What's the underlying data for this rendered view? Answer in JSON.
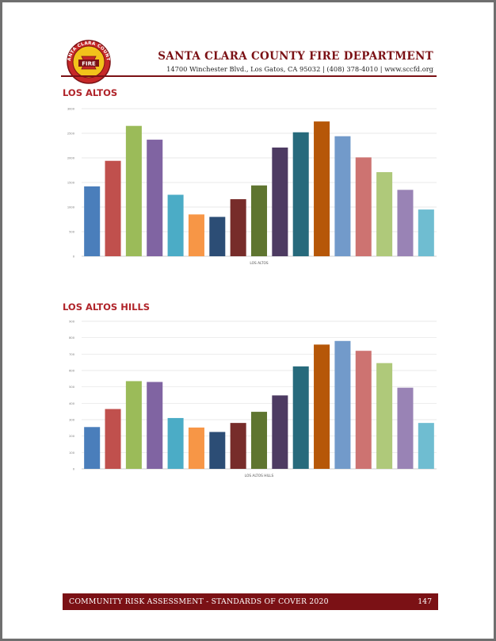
{
  "header": {
    "org_name": "SANTA CLARA COUNTY FIRE DEPARTMENT",
    "address": "14700 Winchester Blvd., Los Gatos, CA 95032 | (408) 378-4010 | www.sccfd.org",
    "logo_text_top": "SANTA CLARA COUNTY",
    "logo_text_center": "FIRE"
  },
  "sections": [
    {
      "title": "LOS ALTOS"
    },
    {
      "title": "LOS ALTOS HILLS"
    }
  ],
  "colors": {
    "brand": "#7b1115",
    "section_title": "#b0242a",
    "bars": [
      "#4a7ebb",
      "#c0504d",
      "#9bbb59",
      "#8064a2",
      "#4bacc6",
      "#f79646",
      "#2c4d75",
      "#772c2a",
      "#5f7530",
      "#4d3b62",
      "#276a7c",
      "#b65708",
      "#729aca",
      "#cd7371",
      "#afc97a",
      "#9983b5",
      "#6fbdd1"
    ]
  },
  "chart_data": [
    {
      "type": "bar",
      "title": "",
      "xlabel": "LOS ALTOS",
      "ylabel": "",
      "ylim": [
        0,
        3000
      ],
      "yticks": [
        "0",
        "500",
        "1000",
        "1500",
        "2000",
        "2500",
        "3000"
      ],
      "grid": true,
      "legend": "none",
      "values": [
        1420,
        1940,
        2650,
        2370,
        1250,
        850,
        800,
        1160,
        1440,
        2210,
        2520,
        2740,
        2440,
        2010,
        1710,
        1350,
        950
      ]
    },
    {
      "type": "bar",
      "title": "",
      "xlabel": "LOS ALTOS HILLS",
      "ylabel": "",
      "ylim": [
        0,
        900
      ],
      "yticks": [
        "0",
        "100",
        "200",
        "300",
        "400",
        "500",
        "600",
        "700",
        "800",
        "900"
      ],
      "grid": true,
      "legend": "none",
      "values": [
        255,
        365,
        535,
        530,
        310,
        252,
        225,
        280,
        348,
        448,
        625,
        758,
        780,
        720,
        645,
        495,
        280
      ]
    }
  ],
  "footer": {
    "title": "COMMUNITY RISK ASSESSMENT - STANDARDS OF COVER 2020",
    "page_number": "147"
  }
}
